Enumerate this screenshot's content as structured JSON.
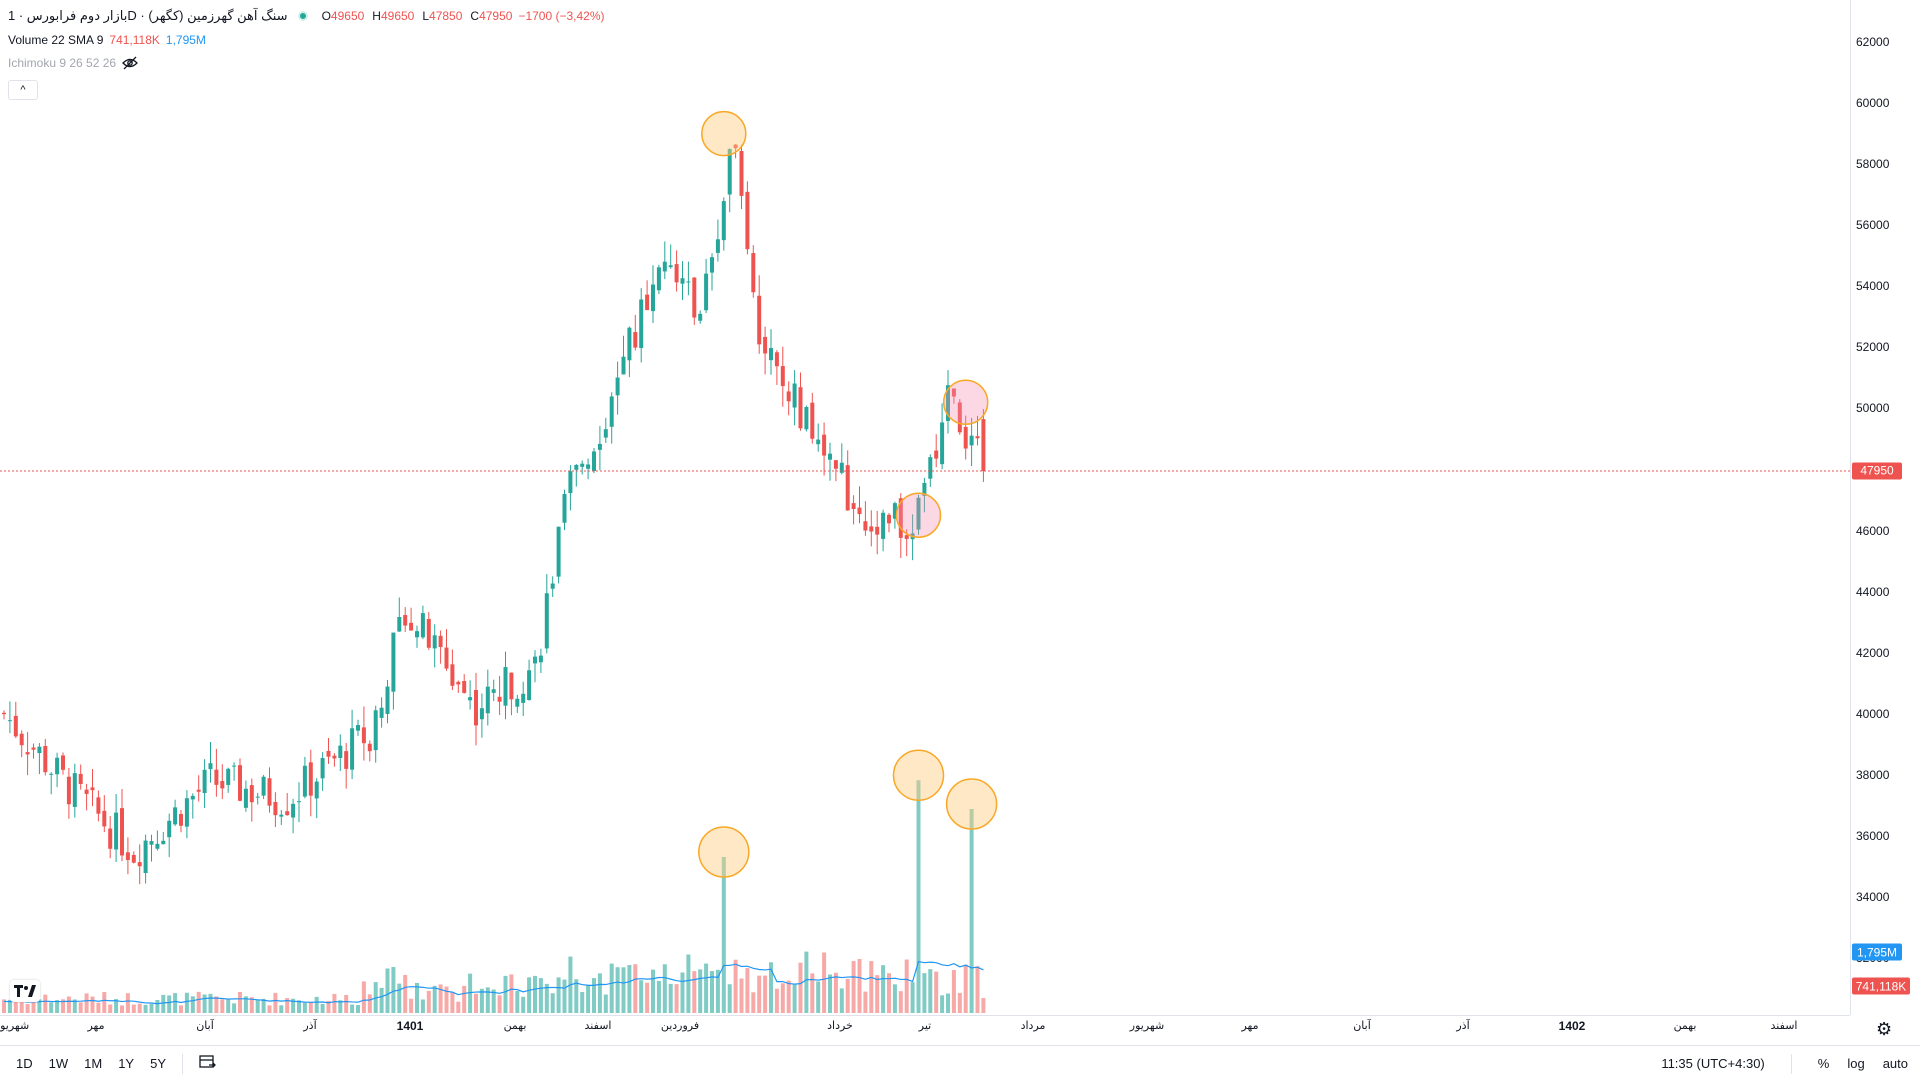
{
  "legend": {
    "title": "بازار دوم فرابورس · 1D · سنگ آهن گهرزمین (کگهر)",
    "open_label": "O",
    "open": "49650",
    "high_label": "H",
    "high": "49650",
    "low_label": "L",
    "low": "47850",
    "close_label": "C",
    "close": "47950",
    "change": "−1700 (−3,42%)",
    "volume_title": "Volume 22 SMA 9",
    "volume_value": "741,118K",
    "volume_sma": "1,795M",
    "ichimoku": "Ichimoku 9 26 52 26",
    "collapse_icon": "^"
  },
  "price_axis": {
    "ticks": [
      "62000",
      "60000",
      "58000",
      "56000",
      "54000",
      "52000",
      "50000",
      "48000",
      "46000",
      "44000",
      "42000",
      "40000",
      "38000",
      "36000",
      "34000",
      "32000"
    ],
    "last_price": "47950",
    "volume_sma_badge": "1,795M",
    "volume_badge": "741,118K"
  },
  "time_axis": {
    "ticks": [
      "شهریور",
      "مهر",
      "آبان",
      "آذر",
      "1401",
      "بهمن",
      "اسفند",
      "فروردین",
      "خرداد",
      "تیر",
      "مرداد",
      "شهریور",
      "مهر",
      "آبان",
      "آذر",
      "1402",
      "بهمن",
      "اسفند"
    ]
  },
  "bottom_bar": {
    "ranges": [
      "1D",
      "1W",
      "1M",
      "1Y",
      "5Y"
    ],
    "time": "11:35 (UTC+4:30)",
    "percent": "%",
    "log": "log",
    "auto": "auto"
  },
  "colors": {
    "up": "#26a69a",
    "down": "#ef5350",
    "sma": "#2196f3",
    "highlight_orange": "#f9a825",
    "highlight_pink": "#f48fb1"
  },
  "chart_data": {
    "type": "candlestick",
    "ylim": [
      30000,
      63000
    ],
    "last_price_line": 47950,
    "anchors": [
      {
        "i": 0,
        "p": 40000
      },
      {
        "i": 10,
        "p": 37800
      },
      {
        "i": 22,
        "p": 35500
      },
      {
        "i": 35,
        "p": 37800
      },
      {
        "i": 48,
        "p": 37200
      },
      {
        "i": 62,
        "p": 39400
      },
      {
        "i": 68,
        "p": 43500
      },
      {
        "i": 80,
        "p": 40200
      },
      {
        "i": 90,
        "p": 41600
      },
      {
        "i": 96,
        "p": 47500
      },
      {
        "i": 103,
        "p": 50200
      },
      {
        "i": 112,
        "p": 55500
      },
      {
        "i": 118,
        "p": 53000
      },
      {
        "i": 124,
        "p": 59200
      },
      {
        "i": 128,
        "p": 52500
      },
      {
        "i": 134,
        "p": 50200
      },
      {
        "i": 141,
        "p": 47800
      },
      {
        "i": 148,
        "p": 46200
      },
      {
        "i": 155,
        "p": 46500
      },
      {
        "i": 160,
        "p": 50300
      },
      {
        "i": 166,
        "p": 47950
      }
    ],
    "volume_spikes": [
      {
        "i": 122,
        "v": 0.65
      },
      {
        "i": 155,
        "v": 0.97
      },
      {
        "i": 164,
        "v": 0.85
      }
    ],
    "highlights": [
      {
        "kind": "price",
        "i": 122,
        "p": 59000,
        "color": "orange"
      },
      {
        "kind": "price",
        "i": 163,
        "p": 50200,
        "color": "pink"
      },
      {
        "kind": "price",
        "i": 155,
        "p": 46500,
        "color": "pink"
      },
      {
        "kind": "volume",
        "i": 122,
        "color": "orange"
      },
      {
        "kind": "volume",
        "i": 155,
        "color": "orange"
      },
      {
        "kind": "volume",
        "i": 164,
        "color": "orange"
      }
    ]
  }
}
